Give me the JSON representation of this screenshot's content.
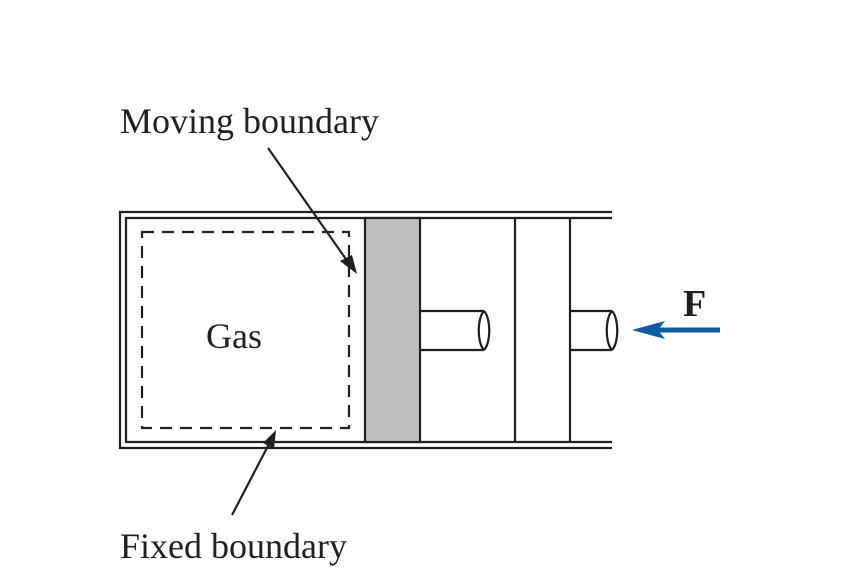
{
  "labels": {
    "moving_boundary": "Moving boundary",
    "fixed_boundary": "Fixed boundary",
    "gas": "Gas",
    "force": "F"
  },
  "colors": {
    "line": "#231f20",
    "piston": "#bcbec0",
    "force_arrow": "#0f5aa5",
    "background": "#ffffff"
  }
}
